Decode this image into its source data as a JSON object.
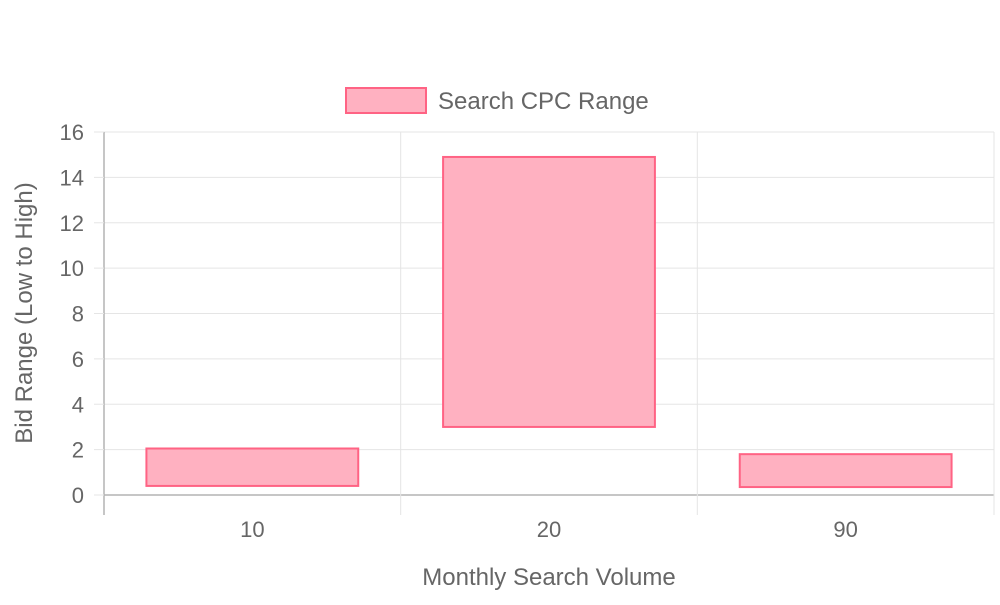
{
  "chart_data": {
    "type": "bar",
    "categories": [
      "10",
      "20",
      "90"
    ],
    "series": [
      {
        "name": "Search CPC Range",
        "ranges": [
          [
            0.4,
            2.05
          ],
          [
            3.0,
            14.9
          ],
          [
            0.35,
            1.8
          ]
        ]
      }
    ],
    "title": "",
    "xlabel": "Monthly Search Volume",
    "ylabel": "Bid Range (Low to High)",
    "ylim": [
      0,
      16
    ],
    "yticks": [
      "0",
      "2",
      "4",
      "6",
      "8",
      "10",
      "12",
      "14",
      "16"
    ],
    "grid": true,
    "legend_position": "top",
    "colors": {
      "bar_fill": "#ffb1c1",
      "bar_stroke": "#ff6384",
      "grid": "#e5e5e5",
      "axis": "#c8c8c8",
      "text": "#666666"
    }
  }
}
